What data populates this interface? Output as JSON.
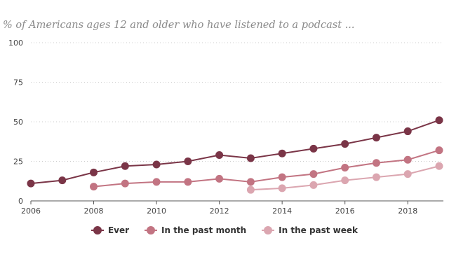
{
  "chart_data": {
    "type": "line",
    "title": "% of Americans ages 12 and older who have listened to a podcast ...",
    "xlabel": "",
    "ylabel": "",
    "xlim": [
      2006,
      2019
    ],
    "ylim": [
      0,
      100
    ],
    "yticks": [
      "0",
      "25",
      "50",
      "75",
      "100"
    ],
    "xticks": [
      "2006",
      "2008",
      "2010",
      "2012",
      "2014",
      "2016",
      "2018"
    ],
    "grid": true,
    "legend_position": "bottom-center",
    "series": [
      {
        "name": "Ever",
        "color": "#7a3547",
        "points": [
          [
            2006,
            11
          ],
          [
            2007,
            13
          ],
          [
            2008,
            18
          ],
          [
            2009,
            22
          ],
          [
            2010,
            23
          ],
          [
            2011,
            25
          ],
          [
            2012,
            29
          ],
          [
            2013,
            27
          ],
          [
            2014,
            30
          ],
          [
            2015,
            33
          ],
          [
            2016,
            36
          ],
          [
            2017,
            40
          ],
          [
            2018,
            44
          ],
          [
            2019,
            51
          ]
        ]
      },
      {
        "name": "In the past month",
        "color": "#c27482",
        "points": [
          [
            2008,
            9
          ],
          [
            2009,
            11
          ],
          [
            2010,
            12
          ],
          [
            2011,
            12
          ],
          [
            2012,
            14
          ],
          [
            2013,
            12
          ],
          [
            2014,
            15
          ],
          [
            2015,
            17
          ],
          [
            2016,
            21
          ],
          [
            2017,
            24
          ],
          [
            2018,
            26
          ],
          [
            2019,
            32
          ]
        ]
      },
      {
        "name": "In the past week",
        "color": "#dba6b0",
        "points": [
          [
            2013,
            7
          ],
          [
            2014,
            8
          ],
          [
            2015,
            10
          ],
          [
            2016,
            13
          ],
          [
            2017,
            15
          ],
          [
            2018,
            17
          ],
          [
            2019,
            22
          ]
        ]
      }
    ]
  }
}
